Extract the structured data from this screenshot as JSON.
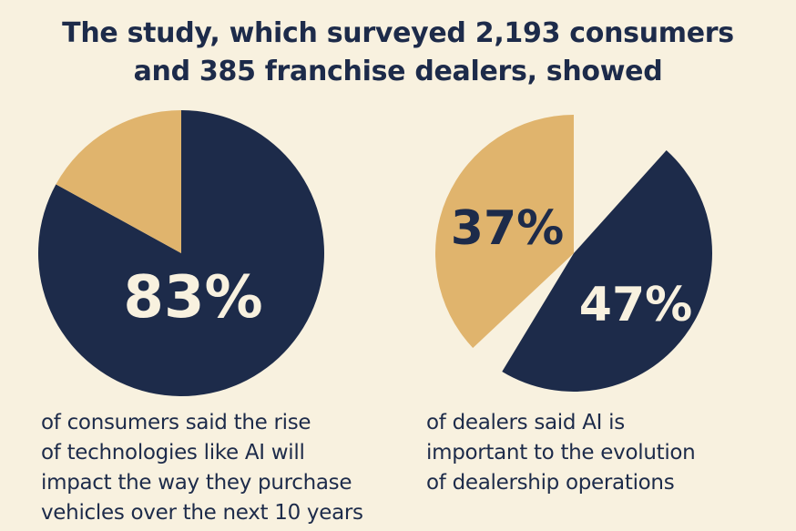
{
  "headline": {
    "line1": "The study, which surveyed 2,193 consumers",
    "line2": "and 385 franchise dealers, showed"
  },
  "colors": {
    "background": "#f8f1df",
    "navy": "#1d2b4a",
    "gold": "#e0b46d",
    "label_light": "#f8f1df"
  },
  "chart_data": [
    {
      "type": "pie",
      "slices": [
        {
          "label": "83%",
          "value": 83,
          "color": "#1d2b4a"
        },
        {
          "label": "",
          "value": 17,
          "color": "#e0b46d"
        }
      ],
      "caption_lines": [
        "of consumers said the rise",
        "of technologies like AI will",
        "impact the way they purchase",
        "vehicles over the next 10 years"
      ]
    },
    {
      "type": "pie",
      "slices": [
        {
          "label": "47%",
          "value": 47,
          "color": "#1d2b4a"
        },
        {
          "label": "37%",
          "value": 37,
          "color": "#e0b46d"
        }
      ],
      "caption_lines": [
        "of dealers said AI is",
        "important to the evolution",
        "of dealership operations"
      ]
    }
  ]
}
